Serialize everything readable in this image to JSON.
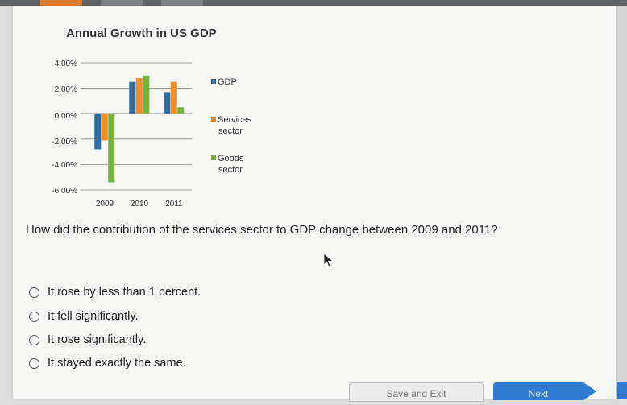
{
  "chart_data": {
    "type": "bar",
    "title": "Annual Growth in US GDP",
    "categories": [
      "2009",
      "2010",
      "2011"
    ],
    "series": [
      {
        "name": "GDP",
        "values": [
          -2.8,
          2.5,
          1.7
        ],
        "color": "#2e6da4"
      },
      {
        "name": "Services sector",
        "values": [
          -2.1,
          2.8,
          2.5
        ],
        "color": "#f28c28"
      },
      {
        "name": "Goods sector",
        "values": [
          -5.4,
          3.0,
          0.5
        ],
        "color": "#77b23c"
      }
    ],
    "yticks": [
      "4.00%",
      "2.00%",
      "0.00%",
      "-2.00%",
      "-4.00%",
      "-6.00%"
    ],
    "ylim": [
      -6,
      4
    ],
    "legend_position": "right"
  },
  "legend": {
    "gdp": "GDP",
    "services_line1": "Services",
    "services_line2": "sector",
    "goods_line1": "Goods",
    "goods_line2": "sector"
  },
  "question": "How did the contribution of the services sector to GDP change between 2009 and 2011?",
  "options": [
    "It rose by less than 1 percent.",
    "It fell significantly.",
    "It rose significantly.",
    "It stayed exactly the same."
  ],
  "buttons": {
    "save_exit": "Save and Exit",
    "next": "Next"
  },
  "colors": {
    "gdp": "#2e6da4",
    "services": "#f28c28",
    "goods": "#77b23c",
    "next_button": "#2f7bd1"
  }
}
